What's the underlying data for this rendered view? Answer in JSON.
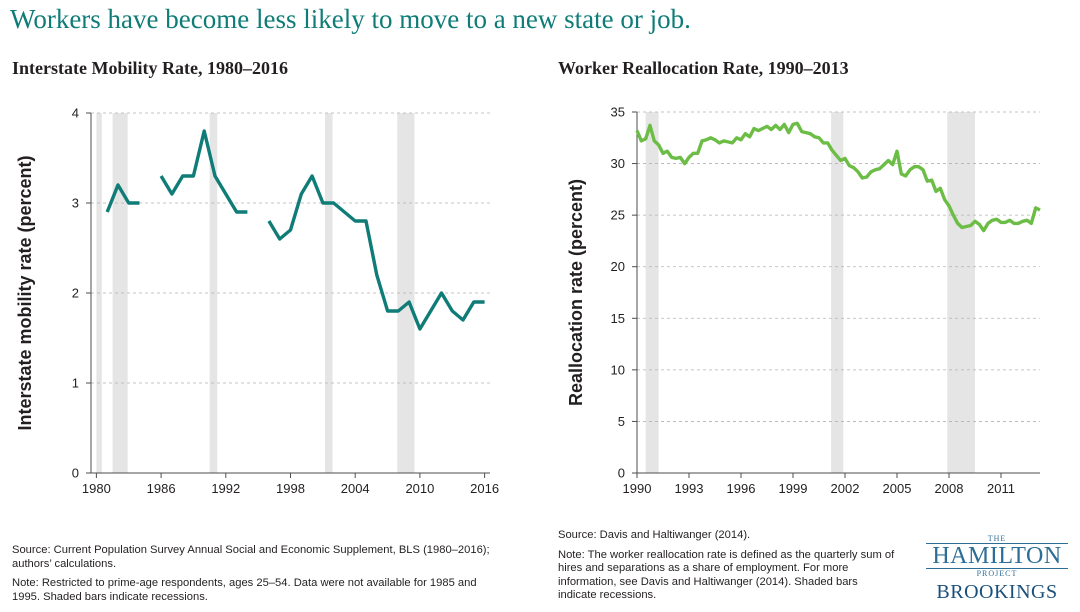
{
  "headline": "Workers have become less likely to move to a new state or job.",
  "colors": {
    "left_line": "#0f7c77",
    "right_line": "#6cbd45",
    "recession": "#e5e5e5",
    "grid": "#b3b3b3"
  },
  "chart_data": [
    {
      "type": "line",
      "title": "Interstate Mobility Rate, 1980–2016",
      "xlabel": "",
      "ylabel": "Interstate mobility rate (percent)",
      "xlim": [
        1979.5,
        2016.5
      ],
      "ylim": [
        0,
        4
      ],
      "yticks": [
        0,
        1,
        2,
        3,
        4
      ],
      "xticks": [
        "1980",
        "1986",
        "1992",
        "1998",
        "2004",
        "2010",
        "2016"
      ],
      "grid": "horizontal dashed",
      "recessions": [
        [
          1980.0,
          1980.5
        ],
        [
          1981.5,
          1982.9
        ],
        [
          1990.5,
          1991.2
        ],
        [
          2001.2,
          2001.9
        ],
        [
          2007.9,
          2009.5
        ]
      ],
      "segments": [
        {
          "x": [
            1981,
            1982,
            1983,
            1984
          ],
          "y": [
            2.9,
            3.2,
            3.0,
            3.0
          ]
        },
        {
          "x": [
            1986,
            1987,
            1988,
            1989,
            1990,
            1991,
            1992,
            1993,
            1994
          ],
          "y": [
            3.3,
            3.1,
            3.3,
            3.3,
            3.8,
            3.3,
            3.1,
            2.9,
            2.9
          ]
        },
        {
          "x": [
            1996,
            1997,
            1998,
            1999,
            2000,
            2001,
            2002,
            2003,
            2004,
            2005,
            2006,
            2007,
            2008,
            2009,
            2010,
            2011,
            2012,
            2013,
            2014,
            2015,
            2016
          ],
          "y": [
            2.8,
            2.6,
            2.7,
            3.1,
            3.3,
            3.0,
            3.0,
            2.9,
            2.8,
            2.8,
            2.2,
            1.8,
            1.8,
            1.9,
            1.6,
            1.8,
            2.0,
            1.8,
            1.7,
            1.9,
            1.9
          ]
        }
      ]
    },
    {
      "type": "line",
      "title": "Worker Reallocation Rate, 1990–2013",
      "xlabel": "",
      "ylabel": "Reallocation rate (percent)",
      "xlim": [
        1990,
        2013.25
      ],
      "ylim": [
        0,
        35
      ],
      "yticks": [
        0,
        5,
        10,
        15,
        20,
        25,
        30,
        35
      ],
      "xticks": [
        "1990",
        "1993",
        "1996",
        "1999",
        "2002",
        "2005",
        "2008",
        "2011"
      ],
      "grid": "horizontal dashed",
      "recessions": [
        [
          1990.5,
          1991.25
        ],
        [
          2001.2,
          2001.9
        ],
        [
          2007.9,
          2009.5
        ]
      ],
      "series": [
        {
          "name": "Worker reallocation rate",
          "x": [
            1990.0,
            1990.25,
            1990.5,
            1990.75,
            1991.0,
            1991.25,
            1991.5,
            1991.75,
            1992.0,
            1992.25,
            1992.5,
            1992.75,
            1993.0,
            1993.25,
            1993.5,
            1993.75,
            1994.0,
            1994.25,
            1994.5,
            1994.75,
            1995.0,
            1995.25,
            1995.5,
            1995.75,
            1996.0,
            1996.25,
            1996.5,
            1996.75,
            1997.0,
            1997.25,
            1997.5,
            1997.75,
            1998.0,
            1998.25,
            1998.5,
            1998.75,
            1999.0,
            1999.25,
            1999.5,
            1999.75,
            2000.0,
            2000.25,
            2000.5,
            2000.75,
            2001.0,
            2001.25,
            2001.5,
            2001.75,
            2002.0,
            2002.25,
            2002.5,
            2002.75,
            2003.0,
            2003.25,
            2003.5,
            2003.75,
            2004.0,
            2004.25,
            2004.5,
            2004.75,
            2005.0,
            2005.25,
            2005.5,
            2005.75,
            2006.0,
            2006.25,
            2006.5,
            2006.75,
            2007.0,
            2007.25,
            2007.5,
            2007.75,
            2008.0,
            2008.25,
            2008.5,
            2008.75,
            2009.0,
            2009.25,
            2009.5,
            2009.75,
            2010.0,
            2010.25,
            2010.5,
            2010.75,
            2011.0,
            2011.25,
            2011.5,
            2011.75,
            2012.0,
            2012.25,
            2012.5,
            2012.75,
            2013.0,
            2013.25
          ],
          "y": [
            33.2,
            32.2,
            32.4,
            33.7,
            32.2,
            31.8,
            31.0,
            31.2,
            30.6,
            30.5,
            30.6,
            30.0,
            30.6,
            31.0,
            31.0,
            32.2,
            32.3,
            32.5,
            32.3,
            32.0,
            32.2,
            32.1,
            32.0,
            32.5,
            32.3,
            32.9,
            32.6,
            33.4,
            33.2,
            33.4,
            33.6,
            33.3,
            33.7,
            33.3,
            33.8,
            33.0,
            33.8,
            33.9,
            33.1,
            33.0,
            32.9,
            32.6,
            32.5,
            32.0,
            32.0,
            31.3,
            30.8,
            30.3,
            30.5,
            29.8,
            29.6,
            29.2,
            28.6,
            28.7,
            29.2,
            29.4,
            29.5,
            29.9,
            30.3,
            29.9,
            31.2,
            29.0,
            28.8,
            29.4,
            29.7,
            29.7,
            29.4,
            28.3,
            28.4,
            27.3,
            27.6,
            26.5,
            25.9,
            25.0,
            24.2,
            23.8,
            23.9,
            24.0,
            24.4,
            24.1,
            23.5,
            24.2,
            24.5,
            24.6,
            24.3,
            24.3,
            24.5,
            24.2,
            24.2,
            24.4,
            24.5,
            24.2,
            25.7,
            25.5
          ]
        }
      ]
    }
  ],
  "left_notes": {
    "source": "Source: Current Population Survey Annual Social and Economic Supplement, BLS (1980–2016); authors’ calculations.",
    "note": "Note: Restricted to prime-age respondents, ages 25–54. Data were not available for 1985 and 1995. Shaded bars indicate recessions."
  },
  "right_notes": {
    "source": "Source: Davis and Haltiwanger (2014).",
    "note": "Note: The worker reallocation rate is defined as the quarterly sum of hires and separations as a share of employment. For more information, see Davis and Haltiwanger (2014). Shaded bars indicate recessions."
  },
  "logo": {
    "the": "THE",
    "hamilton": "HAMILTON",
    "project": "PROJECT",
    "brookings": "BROOKINGS"
  }
}
